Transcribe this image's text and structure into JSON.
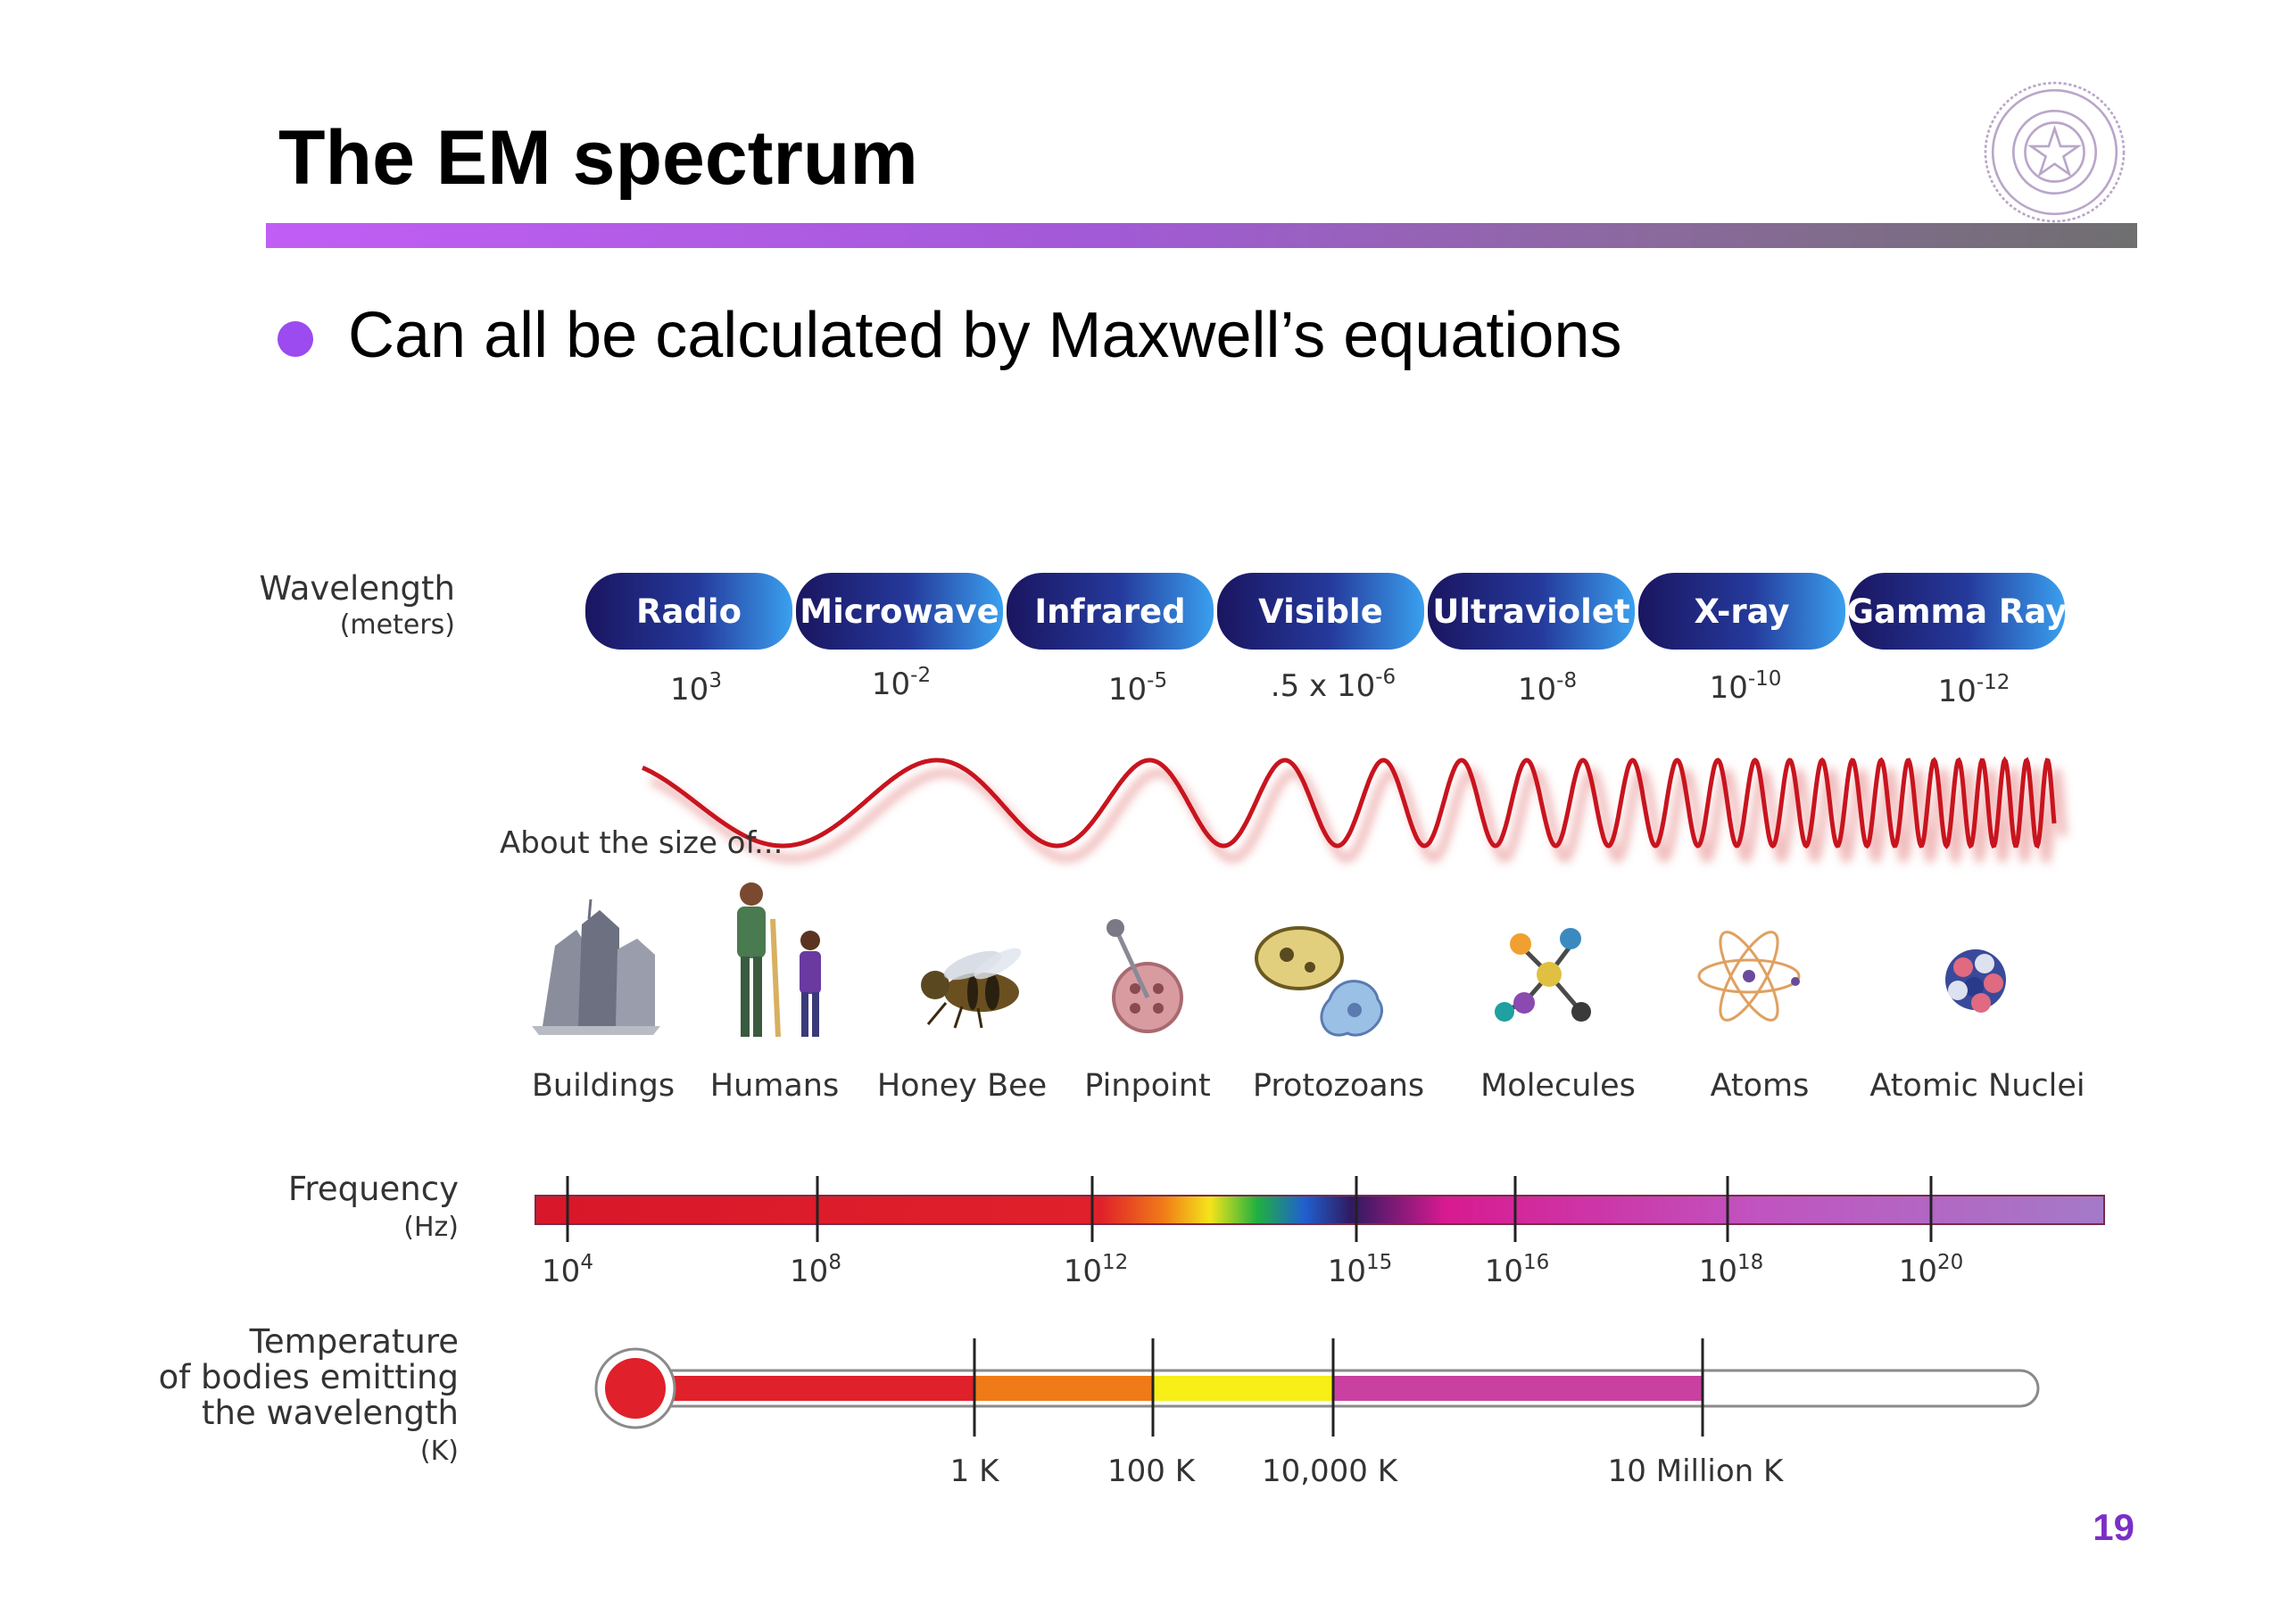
{
  "slide": {
    "title": "The EM spectrum",
    "bullet": "Can all be calculated by Maxwell’s equations",
    "page_number": "19"
  },
  "logo": {
    "icon": "university-seal-icon",
    "color": "#b9a6c9"
  },
  "wavelength_row": {
    "label": "Wavelength",
    "unit": "(meters)",
    "bands": [
      {
        "name": "Radio",
        "base": "10",
        "exp": "3",
        "prefix": ""
      },
      {
        "name": "Microwave",
        "base": "10",
        "exp": "-2",
        "prefix": ""
      },
      {
        "name": "Infrared",
        "base": "10",
        "exp": "-5",
        "prefix": ""
      },
      {
        "name": "Visible",
        "base": "10",
        "exp": "-6",
        "prefix": ".5 x "
      },
      {
        "name": "Ultraviolet",
        "base": "10",
        "exp": "-8",
        "prefix": ""
      },
      {
        "name": "X-ray",
        "base": "10",
        "exp": "-10",
        "prefix": ""
      },
      {
        "name": "Gamma Ray",
        "base": "10",
        "exp": "-12",
        "prefix": ""
      }
    ]
  },
  "size_row": {
    "label": "About the size of...",
    "items": [
      {
        "name": "Buildings",
        "icon": "buildings-icon"
      },
      {
        "name": "Humans",
        "icon": "humans-icon"
      },
      {
        "name": "Honey Bee",
        "icon": "honey-bee-icon"
      },
      {
        "name": "Pinpoint",
        "icon": "pinpoint-icon"
      },
      {
        "name": "Protozoans",
        "icon": "protozoans-icon"
      },
      {
        "name": "Molecules",
        "icon": "molecules-icon"
      },
      {
        "name": "Atoms",
        "icon": "atom-icon"
      },
      {
        "name": "Atomic Nuclei",
        "icon": "atomic-nuclei-icon"
      }
    ]
  },
  "frequency_row": {
    "label": "Frequency",
    "unit": "(Hz)",
    "ticks": [
      {
        "base": "10",
        "exp": "4"
      },
      {
        "base": "10",
        "exp": "8"
      },
      {
        "base": "10",
        "exp": "12"
      },
      {
        "base": "10",
        "exp": "15"
      },
      {
        "base": "10",
        "exp": "16"
      },
      {
        "base": "10",
        "exp": "18"
      },
      {
        "base": "10",
        "exp": "20"
      }
    ]
  },
  "temperature_row": {
    "label_lines": [
      "Temperature",
      "of bodies emitting",
      "the wavelength"
    ],
    "unit": "(K)",
    "ticks": [
      "1 K",
      "100 K",
      "10,000 K",
      "10 Million K"
    ]
  },
  "colors": {
    "wave": "#c8141e",
    "band_dark": "#1a1560",
    "band_light": "#3aa0ef",
    "thermo_red": "#e0202a",
    "thermo_orange": "#f07a18",
    "thermo_yellow": "#f7ef17",
    "thermo_magenta": "#c940a0"
  }
}
